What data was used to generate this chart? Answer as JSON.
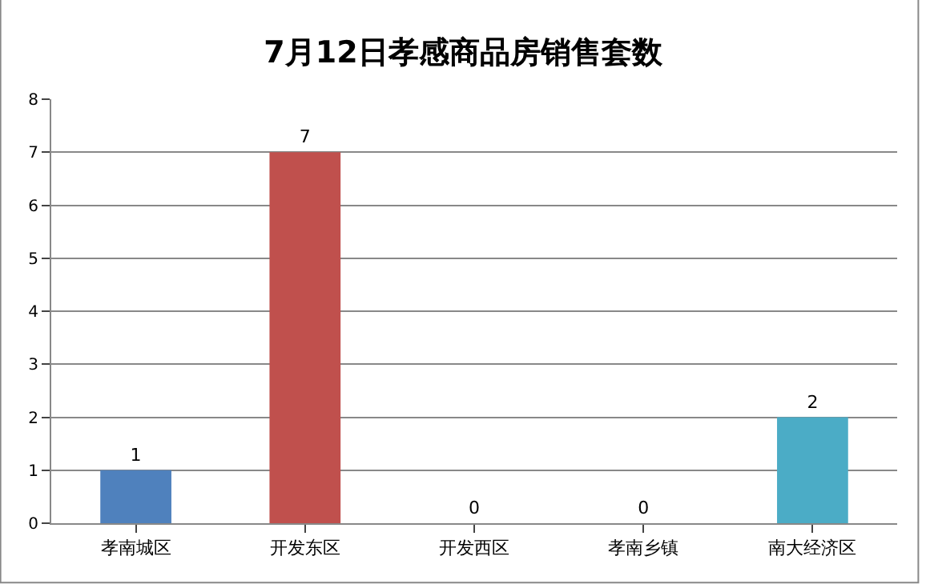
{
  "chart_data": {
    "type": "bar",
    "title": "7月12日孝感商品房销售套数",
    "categories": [
      "孝南城区",
      "开发东区",
      "开发西区",
      "孝南乡镇",
      "南大经济区"
    ],
    "values": [
      1,
      7,
      0,
      0,
      2
    ],
    "colors": [
      "#4f81bd",
      "#c0504d",
      "#9bbb59",
      "#8064a2",
      "#4bacc6"
    ],
    "ylim": [
      0,
      8
    ],
    "yticks": [
      0,
      1,
      2,
      3,
      4,
      5,
      6,
      7,
      8
    ],
    "grid": "y",
    "data_labels": true,
    "legend": false
  }
}
